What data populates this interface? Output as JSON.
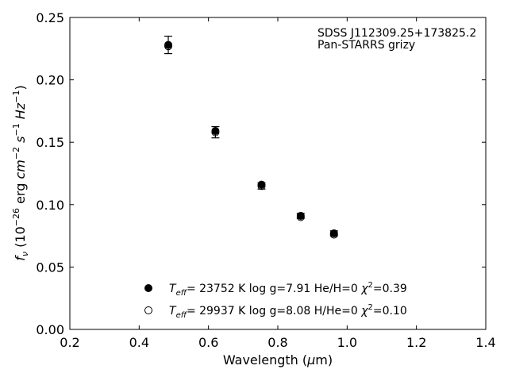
{
  "chart_data": {
    "type": "scatter",
    "annotations": [
      "SDSS J112309.25+173825.2",
      "Pan-STARRS grizy"
    ],
    "xlabel": "Wavelength (μm)",
    "ylabel": "f_ν (10^-26 erg cm^-2 s^-1 Hz^-1)",
    "xlim": [
      0.2,
      1.4
    ],
    "ylim": [
      0.0,
      0.25
    ],
    "xticks": [
      "0.2",
      "0.4",
      "0.6",
      "0.8",
      "1.0",
      "1.2",
      "1.4"
    ],
    "yticks": [
      "0.00",
      "0.05",
      "0.10",
      "0.15",
      "0.20",
      "0.25"
    ],
    "grid": false,
    "legend_position": "bottom-center",
    "series": [
      {
        "name": "T_eff= 23752 K  log g=7.91  He/H=0  χ²=0.39",
        "marker": "filled",
        "x": [
          0.484,
          0.62,
          0.753,
          0.866,
          0.962
        ],
        "y": [
          0.228,
          0.159,
          0.116,
          0.091,
          0.077
        ]
      },
      {
        "name": "T_eff= 29937 K  log g=8.08  H/He=0  χ²=0.10",
        "marker": "open",
        "x": [
          0.484,
          0.62,
          0.753,
          0.866,
          0.962
        ],
        "y": [
          0.227,
          0.158,
          0.115,
          0.09,
          0.076
        ]
      }
    ],
    "observed": {
      "x": [
        0.484,
        0.62,
        0.753,
        0.866,
        0.962
      ],
      "y": [
        0.228,
        0.158,
        0.115,
        0.091,
        0.077
      ],
      "yerr": [
        0.007,
        0.0045,
        0.0025,
        0.002,
        0.002
      ]
    }
  }
}
